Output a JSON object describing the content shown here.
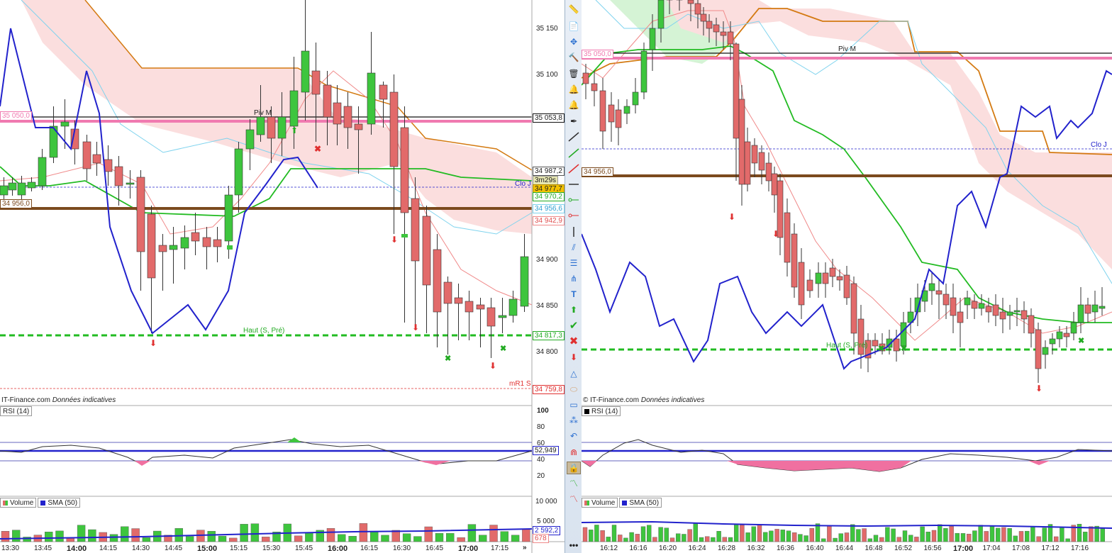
{
  "left": {
    "price_axis": [
      "35 150",
      "35 100",
      "34 900",
      "34 850",
      "34 800"
    ],
    "price_tags": {
      "pivot": "35 053,8",
      "p1": "34 987,2",
      "timer": "3m29s",
      "p2": "34 977,7",
      "p3": "34 970,2",
      "p4": "34 956,6",
      "p5": "34 942,9",
      "high": "34 817,3",
      "mr1": "34 759,8"
    },
    "chart_labels": {
      "pink_level": "35 050,0",
      "brown_level": "34 956,0",
      "piv": "Piv M",
      "clo": "Clo J",
      "haut": "Haut (S, Pré)",
      "mr1": "mR1 S"
    },
    "credit": {
      "site": "IT-Finance.com",
      "note": "Données indicatives"
    },
    "rsi": {
      "label": "RSI (14)",
      "axis": [
        "100",
        "80",
        "60",
        "40",
        "20"
      ],
      "value": "52,949"
    },
    "volume": {
      "label": "Volume",
      "sma": "SMA (50)",
      "axis": [
        "10 000",
        "5 000"
      ],
      "v1": "2 592,2",
      "v2": "678"
    },
    "time_axis": [
      "13:30",
      "13:45",
      "14:00",
      "14:15",
      "14:30",
      "14:45",
      "15:00",
      "15:15",
      "15:30",
      "15:45",
      "16:00",
      "16:15",
      "16:30",
      "16:45",
      "17:00",
      "17:15"
    ],
    "scroll_more": "»"
  },
  "right": {
    "chart_labels": {
      "pink_level": "35 050,0",
      "brown_level": "34 956,0",
      "piv": "Piv M",
      "clo": "Clo J",
      "haut": "Haut (S, Pré)"
    },
    "credit": {
      "site": "© IT-Finance.com",
      "note": "Données indicatives"
    },
    "rsi": {
      "label": "RSI (14)"
    },
    "volume": {
      "label": "Volume",
      "sma": "SMA (50)"
    },
    "time_axis": [
      "16:12",
      "16:16",
      "16:20",
      "16:24",
      "16:28",
      "16:32",
      "16:36",
      "16:40",
      "16:44",
      "16:48",
      "16:52",
      "16:56",
      "17:00",
      "17:04",
      "17:08",
      "17:12",
      "17:16"
    ]
  },
  "toolbar": {
    "icons": [
      "ruler-icon",
      "copy-icon",
      "move-icon",
      "hammer-icon",
      "trash-icon",
      "alert-bell-icon",
      "alert-icon",
      "pen-icon",
      "trend-line-icon",
      "green-line-icon",
      "red-line-icon",
      "horizontal-line-icon",
      "ray-green-icon",
      "ray-red-icon",
      "vertical-line-icon",
      "channel-icon",
      "fibonacci-icon",
      "pitchfork-icon",
      "text-icon",
      "arrow-up-icon",
      "check-icon",
      "cross-icon",
      "arrow-down-icon",
      "triangle-icon",
      "ellipse-icon",
      "rectangle-icon",
      "cycles-icon",
      "undo-icon",
      "magnet-icon",
      "lock-icon",
      "zigzag-green-icon",
      "zigzag-red-icon",
      "more-icon"
    ]
  },
  "colors": {
    "bull": "#3ec53e",
    "bear": "#e26a6a",
    "cloud": "#fbdede",
    "kumo_green": "#d5f3d5",
    "pink": "#f07ab0",
    "brown": "#7b4a1e",
    "orange": "#d47a12",
    "blue": "#2222cc",
    "green_line": "#22bb22",
    "cyan": "#7fd3ee",
    "salmon": "#f08a8a"
  }
}
